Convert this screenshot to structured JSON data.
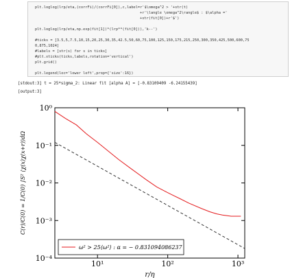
{
  "code_lines": [
    "plt.loglog(lrp/eta,(corrFi)/(corrFi[0]),c,label=r'$\\omega^2 > '+str(t)",
    "+r'\\langle \\omega^2\\rangle$ : $\\alpha ='",
    "+str(fit[0])+r'$')",
    "plt.loglog(lrp/eta,np.exp(fit[1])*(lrp**(fit[0])),'k--')",
    "#ticks = [3.5,5,7.5,10,15,20,25,30,35,42.5,50,60,75,100,125,150,175,215,250,300,350,425,500,600,75",
    "0,875,1024]",
    "#labels = [str(s) for s in ticks]",
    "#plt.xticks(ticks,labels,rotation='vertical')",
    "plt.grid()",
    "plt.legend(loc='lower left',prop={'size':16})"
  ],
  "stdout": "[stdout:3] t = 25*sigma_2: Linear fit [alpha A] = [-0.83109409 -6.24155439]",
  "output_label": "[output:3]",
  "chart_data": {
    "type": "line",
    "x_label": "r/η",
    "y_label": "C(r)/C(0) = 1/C(0) ∫S² ⟨χ(x)χ(x+r)⟩dΩ",
    "log_x": true,
    "log_y": true,
    "legend": "lower left",
    "xlim": [
      2.47,
      1250
    ],
    "ylim": [
      0.0001,
      1
    ],
    "xticks": [
      {
        "value": 10,
        "label": "10¹"
      },
      {
        "value": 100,
        "label": "10²"
      },
      {
        "value": 1000,
        "label": "10³"
      }
    ],
    "yticks": [
      {
        "value": 0.0001,
        "label": "10⁻⁴"
      },
      {
        "value": 0.001,
        "label": "10⁻³"
      },
      {
        "value": 0.01,
        "label": "10⁻²"
      },
      {
        "value": 0.1,
        "label": "10⁻¹"
      },
      {
        "value": 1,
        "label": "10⁰"
      }
    ],
    "series": [
      {
        "name": "ω² > 25⟨ω²⟩ : α = − 0.831094086237",
        "color": "#e41a1c",
        "dash": false,
        "x": [
          2.47,
          3.5,
          5,
          7,
          10,
          15,
          20,
          30,
          50,
          70,
          100,
          150,
          200,
          300,
          400,
          500,
          600,
          800,
          1000,
          1100
        ],
        "values": [
          0.8,
          0.52,
          0.35,
          0.2,
          0.12,
          0.065,
          0.042,
          0.024,
          0.012,
          0.0078,
          0.0055,
          0.0038,
          0.0029,
          0.0021,
          0.0017,
          0.0015,
          0.0014,
          0.0013,
          0.0013,
          0.0013
        ]
      },
      {
        "name": null,
        "color": "#333333",
        "dash": true,
        "x": [
          2.47,
          1250
        ],
        "values": [
          0.12,
          0.00018
        ]
      }
    ]
  }
}
